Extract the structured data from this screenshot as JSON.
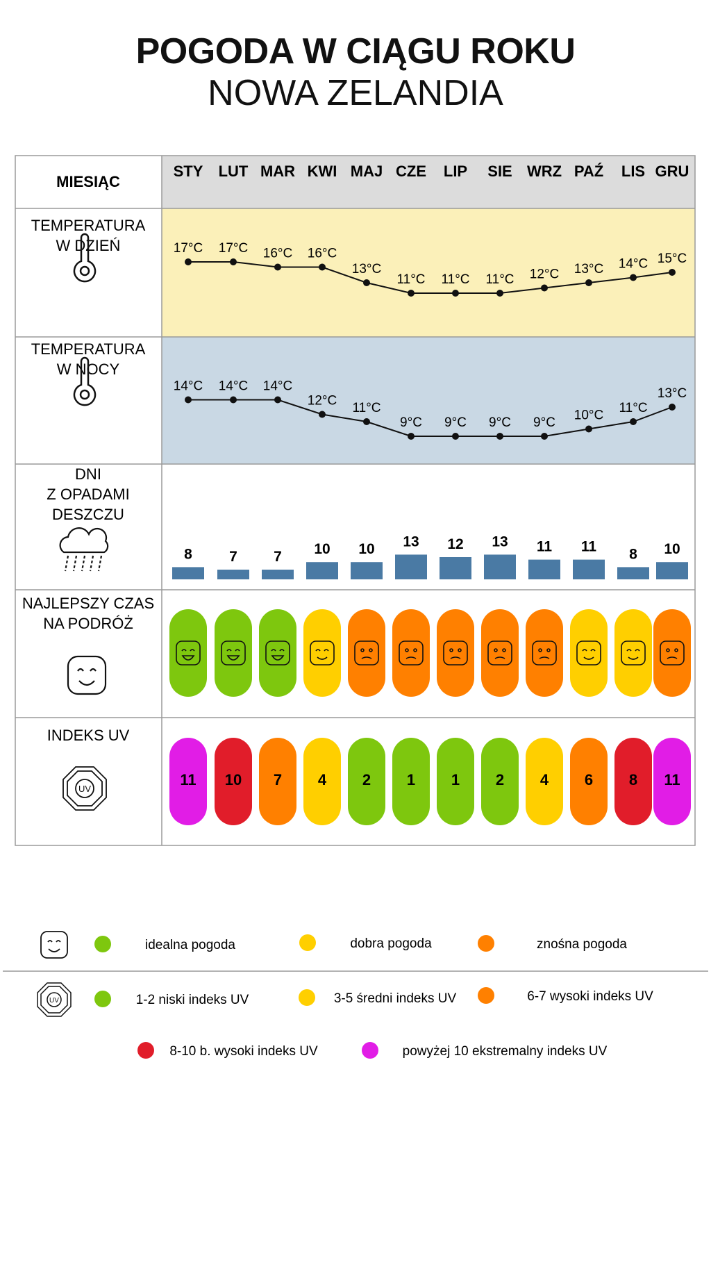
{
  "title": "POGODA W CIĄGU ROKU",
  "subtitle": "NOWA ZELANDIA",
  "header_label": "MIESIĄC",
  "months": [
    "STY",
    "LUT",
    "MAR",
    "KWI",
    "MAJ",
    "CZE",
    "LIP",
    "SIE",
    "WRZ",
    "PAŹ",
    "LIS",
    "GRU"
  ],
  "row_labels": {
    "day_temp": [
      "TEMPERATURA",
      "W DZIEŃ"
    ],
    "night_temp": [
      "TEMPERATURA",
      "W NOCY"
    ],
    "rain": [
      "DNI",
      "Z OPADAMI",
      "DESZCZU"
    ],
    "travel": [
      "NAJLEPSZY CZAS",
      "NA PODRÓŻ"
    ],
    "uv": [
      "INDEKS UV"
    ]
  },
  "icons": {
    "day_temp": "thermometer-icon",
    "night_temp": "thermometer-icon",
    "rain": "rain-cloud-icon",
    "travel": "smiley-icon",
    "uv": "uv-sun-icon"
  },
  "colors": {
    "header_bg": "#dcdcdc",
    "day_bg": "#fbf0b9",
    "night_bg": "#c9d8e4",
    "bar": "#4a7aa4",
    "green": "#7ec70e",
    "yellow": "#ffcf00",
    "orange": "#ff8000",
    "red": "#e11d2a",
    "magenta": "#e11de6"
  },
  "chart_data": [
    {
      "type": "line",
      "name": "day_temperature",
      "categories": [
        "STY",
        "LUT",
        "MAR",
        "KWI",
        "MAJ",
        "CZE",
        "LIP",
        "SIE",
        "WRZ",
        "PAŹ",
        "LIS",
        "GRU"
      ],
      "values": [
        17,
        17,
        16,
        16,
        13,
        11,
        11,
        11,
        12,
        13,
        14,
        15
      ],
      "unit": "°C"
    },
    {
      "type": "line",
      "name": "night_temperature",
      "categories": [
        "STY",
        "LUT",
        "MAR",
        "KWI",
        "MAJ",
        "CZE",
        "LIP",
        "SIE",
        "WRZ",
        "PAŹ",
        "LIS",
        "GRU"
      ],
      "values": [
        14,
        14,
        14,
        12,
        11,
        9,
        9,
        9,
        9,
        10,
        11,
        13
      ],
      "unit": "°C"
    },
    {
      "type": "bar",
      "name": "rain_days",
      "categories": [
        "STY",
        "LUT",
        "MAR",
        "KWI",
        "MAJ",
        "CZE",
        "LIP",
        "SIE",
        "WRZ",
        "PAŹ",
        "LIS",
        "GRU"
      ],
      "values": [
        8,
        7,
        7,
        10,
        10,
        13,
        12,
        13,
        11,
        11,
        8,
        10
      ]
    },
    {
      "type": "table",
      "name": "best_travel_time",
      "categories": [
        "STY",
        "LUT",
        "MAR",
        "KWI",
        "MAJ",
        "CZE",
        "LIP",
        "SIE",
        "WRZ",
        "PAŹ",
        "LIS",
        "GRU"
      ],
      "values": [
        "ideal",
        "ideal",
        "ideal",
        "good",
        "tolerable",
        "tolerable",
        "tolerable",
        "tolerable",
        "tolerable",
        "good",
        "good",
        "tolerable"
      ]
    },
    {
      "type": "table",
      "name": "uv_index",
      "categories": [
        "STY",
        "LUT",
        "MAR",
        "KWI",
        "MAJ",
        "CZE",
        "LIP",
        "SIE",
        "WRZ",
        "PAŹ",
        "LIS",
        "GRU"
      ],
      "values": [
        11,
        10,
        7,
        4,
        2,
        1,
        1,
        2,
        4,
        6,
        8,
        11
      ]
    }
  ],
  "legend": {
    "travel": [
      {
        "color": "#7ec70e",
        "label": "idealna pogoda"
      },
      {
        "color": "#ffcf00",
        "label": "dobra pogoda"
      },
      {
        "color": "#ff8000",
        "label": "znośna pogoda"
      }
    ],
    "uv": [
      {
        "color": "#7ec70e",
        "label": "1-2 niski indeks UV"
      },
      {
        "color": "#ffcf00",
        "label": "3-5 średni indeks UV"
      },
      {
        "color": "#ff8000",
        "label": "6-7 wysoki indeks UV"
      },
      {
        "color": "#e11d2a",
        "label": "8-10 b. wysoki indeks UV"
      },
      {
        "color": "#e11de6",
        "label": "powyżej 10 ekstremalny indeks UV"
      }
    ]
  }
}
